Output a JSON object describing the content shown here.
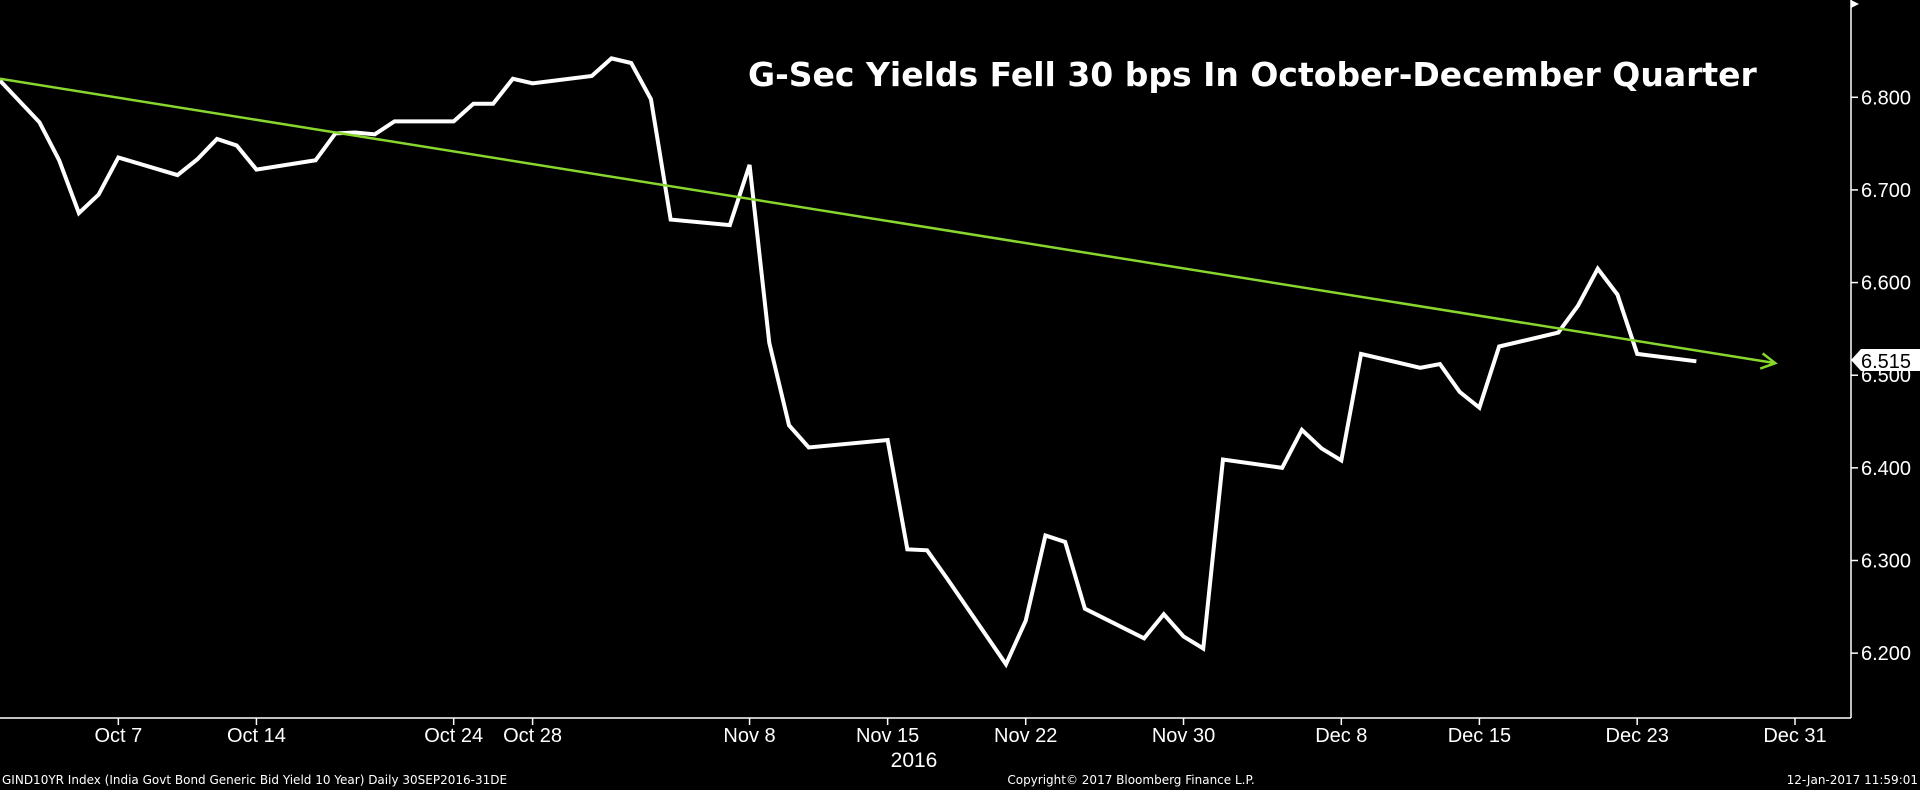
{
  "chart_data": {
    "type": "line",
    "title": "G-Sec Yields Fell 30 bps In October-December Quarter",
    "xlabel": "2016",
    "ylabel": "",
    "x_ticks": [
      {
        "label": "Oct 7",
        "date": "2016-10-07"
      },
      {
        "label": "Oct 14",
        "date": "2016-10-14"
      },
      {
        "label": "Oct 24",
        "date": "2016-10-24"
      },
      {
        "label": "Oct 28",
        "date": "2016-10-28"
      },
      {
        "label": "Nov 8",
        "date": "2016-11-08"
      },
      {
        "label": "Nov 15",
        "date": "2016-11-15"
      },
      {
        "label": "Nov 22",
        "date": "2016-11-22"
      },
      {
        "label": "Nov 30",
        "date": "2016-11-30"
      },
      {
        "label": "Dec 8",
        "date": "2016-12-08"
      },
      {
        "label": "Dec 15",
        "date": "2016-12-15"
      },
      {
        "label": "Dec 23",
        "date": "2016-12-23"
      },
      {
        "label": "Dec 31",
        "date": "2016-12-31"
      }
    ],
    "y_ticks": [
      "6.200",
      "6.300",
      "6.400",
      "6.500",
      "6.600",
      "6.700",
      "6.800"
    ],
    "ylim": [
      6.13,
      6.905
    ],
    "xlim": [
      "2016-10-01",
      "2017-01-02"
    ],
    "grid": false,
    "axis_position": "right",
    "series": [
      {
        "color": "#ffffff",
        "points": [
          [
            "2016-10-01",
            6.818
          ],
          [
            "2016-10-03",
            6.773
          ],
          [
            "2016-10-04",
            6.732
          ],
          [
            "2016-10-05",
            6.675
          ],
          [
            "2016-10-06",
            6.695
          ],
          [
            "2016-10-07",
            6.735
          ],
          [
            "2016-10-10",
            6.716
          ],
          [
            "2016-10-11",
            6.733
          ],
          [
            "2016-10-12",
            6.755
          ],
          [
            "2016-10-13",
            6.748
          ],
          [
            "2016-10-14",
            6.722
          ],
          [
            "2016-10-17",
            6.732
          ],
          [
            "2016-10-18",
            6.761
          ],
          [
            "2016-10-19",
            6.762
          ],
          [
            "2016-10-20",
            6.76
          ],
          [
            "2016-10-21",
            6.774
          ],
          [
            "2016-10-24",
            6.774
          ],
          [
            "2016-10-25",
            6.793
          ],
          [
            "2016-10-26",
            6.793
          ],
          [
            "2016-10-27",
            6.82
          ],
          [
            "2016-10-28",
            6.815
          ],
          [
            "2016-10-31",
            6.823
          ],
          [
            "2016-11-01",
            6.842
          ],
          [
            "2016-11-02",
            6.837
          ],
          [
            "2016-11-03",
            6.798
          ],
          [
            "2016-11-04",
            6.668
          ],
          [
            "2016-11-07",
            6.662
          ],
          [
            "2016-11-08",
            6.727
          ],
          [
            "2016-11-09",
            6.535
          ],
          [
            "2016-11-10",
            6.446
          ],
          [
            "2016-11-11",
            6.422
          ],
          [
            "2016-11-15",
            6.43
          ],
          [
            "2016-11-16",
            6.312
          ],
          [
            "2016-11-17",
            6.311
          ],
          [
            "2016-11-18",
            6.281
          ],
          [
            "2016-11-21",
            6.188
          ],
          [
            "2016-11-22",
            6.235
          ],
          [
            "2016-11-23",
            6.327
          ],
          [
            "2016-11-24",
            6.32
          ],
          [
            "2016-11-25",
            6.248
          ],
          [
            "2016-11-28",
            6.216
          ],
          [
            "2016-11-29",
            6.242
          ],
          [
            "2016-11-30",
            6.218
          ],
          [
            "2016-12-01",
            6.205
          ],
          [
            "2016-12-02",
            6.409
          ],
          [
            "2016-12-05",
            6.4
          ],
          [
            "2016-12-06",
            6.441
          ],
          [
            "2016-12-07",
            6.421
          ],
          [
            "2016-12-08",
            6.408
          ],
          [
            "2016-12-09",
            6.523
          ],
          [
            "2016-12-12",
            6.508
          ],
          [
            "2016-12-13",
            6.512
          ],
          [
            "2016-12-14",
            6.482
          ],
          [
            "2016-12-15",
            6.465
          ],
          [
            "2016-12-16",
            6.531
          ],
          [
            "2016-12-19",
            6.546
          ],
          [
            "2016-12-20",
            6.575
          ],
          [
            "2016-12-21",
            6.615
          ],
          [
            "2016-12-22",
            6.587
          ],
          [
            "2016-12-23",
            6.523
          ],
          [
            "2016-12-26",
            6.515
          ]
        ]
      },
      {
        "color": "#88d62e",
        "style": "trend-arrow",
        "points": [
          [
            "2016-10-01",
            6.82
          ],
          [
            "2016-12-30",
            6.513
          ]
        ]
      }
    ],
    "last_value": "6.515"
  },
  "footer": {
    "left": "GIND10YR Index (India Govt Bond Generic Bid Yield 10 Year)  Daily 30SEP2016-31DE",
    "center": "Copyright© 2017 Bloomberg Finance L.P.",
    "right": "12-Jan-2017 11:59:01"
  }
}
